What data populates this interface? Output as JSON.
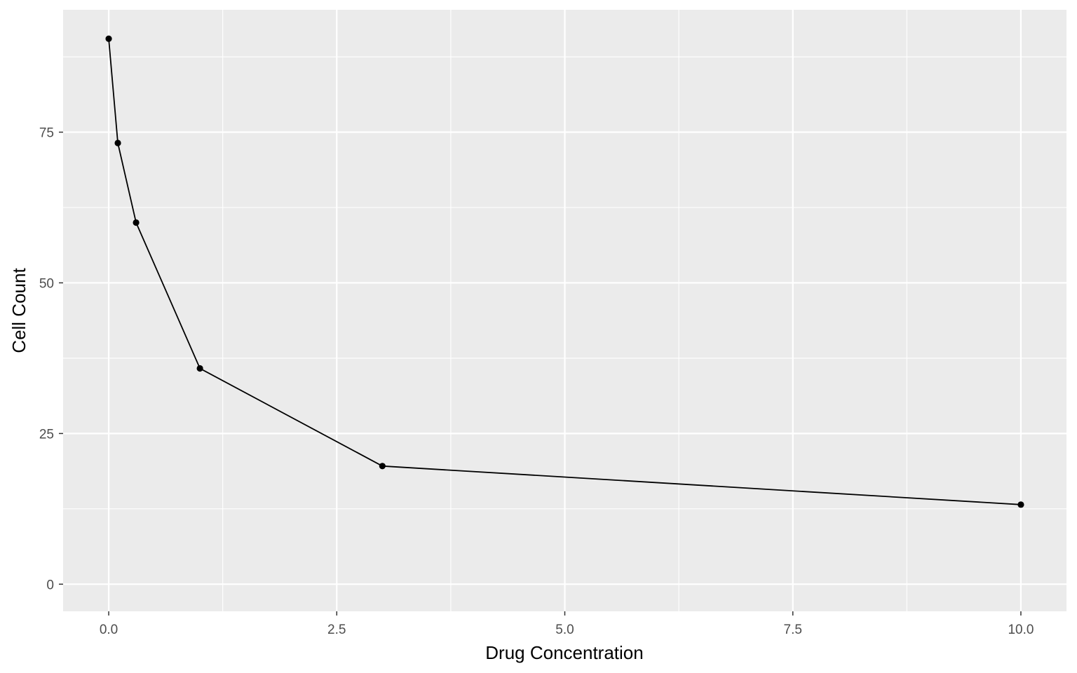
{
  "chart_data": {
    "type": "line",
    "title": "",
    "xlabel": "Drug Concentration",
    "ylabel": "Cell Count",
    "x": [
      0,
      0.1,
      0.3,
      1,
      3,
      10
    ],
    "y": [
      90.5,
      73.2,
      60.0,
      35.8,
      19.6,
      13.2
    ],
    "xlim": [
      -0.5,
      10.5
    ],
    "ylim": [
      -4.5,
      95.3
    ],
    "x_ticks": [
      0,
      2.5,
      5,
      7.5,
      10
    ],
    "x_tick_labels": [
      "0.0",
      "2.5",
      "5.0",
      "7.5",
      "10.0"
    ],
    "y_ticks": [
      0,
      25,
      50,
      75
    ],
    "y_tick_labels": [
      "0",
      "25",
      "50",
      "75"
    ],
    "grid": true,
    "markers": true,
    "colors": {
      "panel_background": "#ebebeb",
      "grid_major": "#ffffff",
      "line": "#000000",
      "point": "#000000",
      "tick_text": "#4d4d4d",
      "axis_title": "#000000"
    }
  }
}
